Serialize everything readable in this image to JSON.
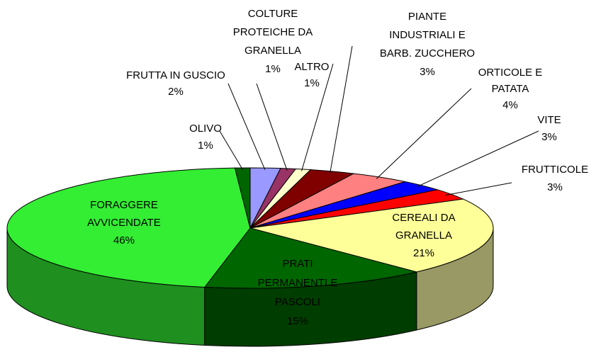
{
  "chart_data": {
    "type": "pie",
    "categories": [
      [
        "FRUTTA IN GUSCIO"
      ],
      [
        "COLTURE",
        "PROTEICHE DA",
        "GRANELLA"
      ],
      [
        "ALTRO"
      ],
      [
        "PIANTE",
        "INDUSTRIALI E",
        "BARB. ZUCCHERO"
      ],
      [
        "ORTICOLE E",
        "PATATA"
      ],
      [
        "VITE"
      ],
      [
        "FRUTTICOLE"
      ],
      [
        "CEREALI DA",
        "GRANELLA"
      ],
      [
        "PRATI",
        "PERMANENTI E",
        "PASCOLI"
      ],
      [
        "FORAGGERE",
        "AVVICENDATE"
      ],
      [
        "OLIVO"
      ]
    ],
    "values": [
      2,
      1,
      1,
      3,
      4,
      3,
      3,
      21,
      15,
      46,
      1
    ],
    "value_labels": [
      "2%",
      "1%",
      "1%",
      "3%",
      "4%",
      "3%",
      "3%",
      "21%",
      "15%",
      "46%",
      "1%"
    ],
    "colors": [
      "#9999ff",
      "#993366",
      "#ffffcc",
      "#800000",
      "#ff8080",
      "#0000ff",
      "#ff0000",
      "#ffff99",
      "#006600",
      "#33ee33",
      "#006600"
    ]
  }
}
